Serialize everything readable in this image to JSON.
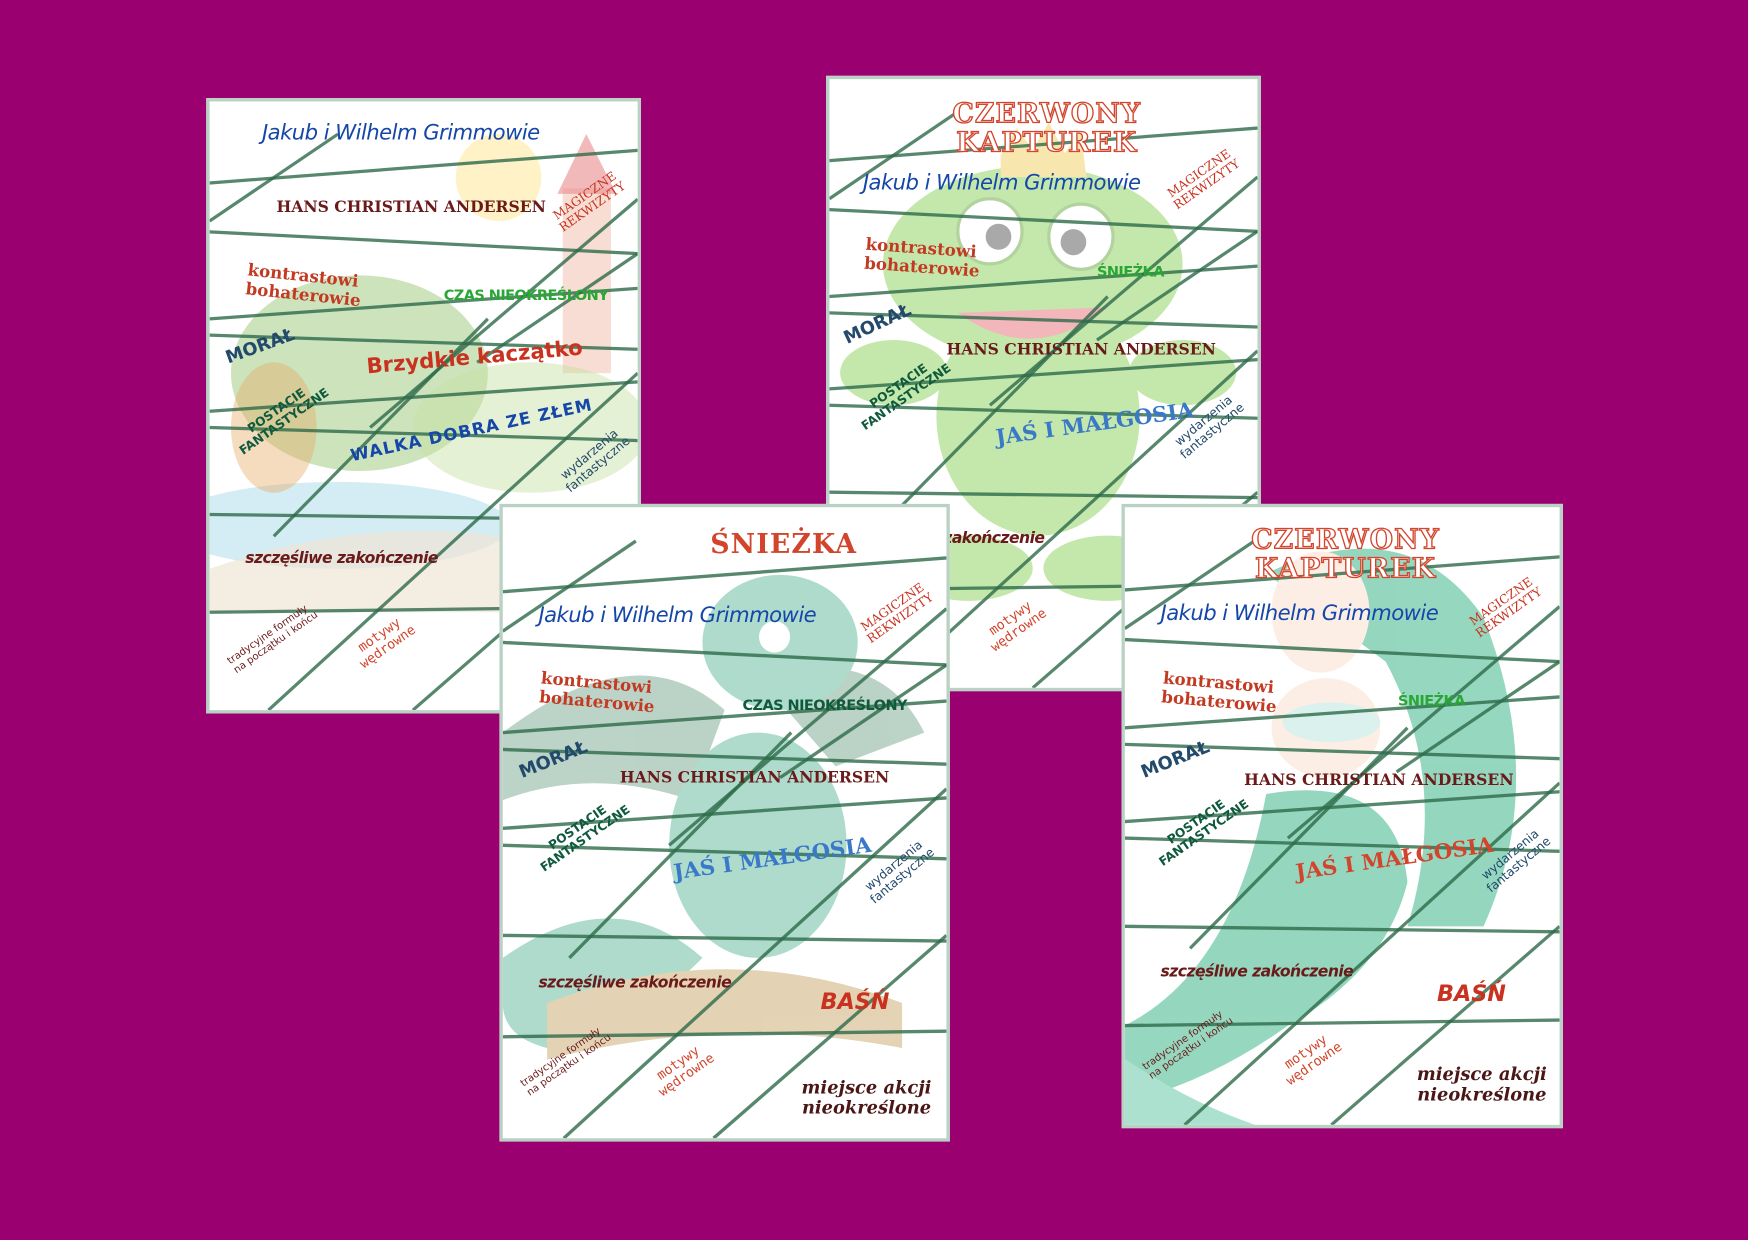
{
  "background": "#9b0070",
  "cards": [
    {
      "name": "worksheet-brzydkie-kaczatko",
      "illustration": "castle-landscape",
      "labels": {
        "authors": "Jakub i Wilhelm Grimmowie",
        "andersen": "HANS CHRISTIAN ANDERSEN",
        "magiczne": "MAGICZNE\nREKWIZYTY",
        "kontrast": "kontrastowi\nbohaterowie",
        "czas": "CZAS NIEOKREŚLONY",
        "moral": "MORAŁ",
        "big": "Brzydkie kaczątko",
        "postacie": "POSTACIE\nFANTASTYCZNE",
        "walka": "WALKA DOBRA ZE ZŁEM",
        "wydarzenia": "wydarzenia\nfantastyczne",
        "happy": "szczęśliwe zakończenie",
        "trad": "tradycyjne formuły\nna początku i końcu",
        "motywy": "motywy\nwędrowne"
      }
    },
    {
      "name": "worksheet-czerwony-kapturek-frog",
      "illustration": "frog-prince",
      "labels": {
        "title": "CZERWONY KAPTUREK",
        "authors": "Jakub i Wilhelm Grimmowie",
        "magiczne": "MAGICZNE\nREKWIZYTY",
        "kontrast": "kontrastowi\nbohaterowie",
        "sniezka": "ŚNIEŻKA",
        "moral": "MORAŁ",
        "andersen": "HANS CHRISTIAN ANDERSEN",
        "postacie": "POSTACIE\nFANTASTYCZNE",
        "jas": "JAŚ I MAŁGOSIA",
        "wydarzenia": "wydarzenia\nfantastyczne",
        "happy": "szczęśliwe zakończenie",
        "motywy": "motywy\nwędrowne"
      }
    },
    {
      "name": "worksheet-sniezka-dragon",
      "illustration": "dragon",
      "labels": {
        "title": "ŚNIEŻKA",
        "authors": "Jakub i Wilhelm Grimmowie",
        "magiczne": "MAGICZNE\nREKWIZYTY",
        "kontrast": "kontrastowi\nbohaterowie",
        "czas": "CZAS NIEOKREŚLONY",
        "moral": "MORAŁ",
        "andersen": "HANS CHRISTIAN ANDERSEN",
        "postacie": "POSTACIE\nFANTASTYCZNE",
        "jas": "JAŚ I MAŁGOSIA",
        "wydarzenia": "wydarzenia\nfantastyczne",
        "happy": "szczęśliwe zakończenie",
        "basn": "BAŚŃ",
        "trad": "tradycyjne formuły\nna początku i końcu",
        "motywy": "motywy\nwędrowne",
        "miejsce": "miejsce akcji\nnieokreślone"
      }
    },
    {
      "name": "worksheet-czerwony-kapturek-mermaid",
      "illustration": "mermaid",
      "labels": {
        "title": "CZERWONY KAPTUREK",
        "authors": "Jakub i Wilhelm Grimmowie",
        "magiczne": "MAGICZNE\nREKWIZYTY",
        "kontrast": "kontrastowi\nbohaterowie",
        "sniezka": "ŚNIEŻKA",
        "moral": "MORAŁ",
        "andersen": "HANS CHRISTIAN ANDERSEN",
        "postacie": "POSTACIE\nFANTASTYCZNE",
        "jas": "JAŚ I MAŁGOSIA",
        "wydarzenia": "wydarzenia\nfantastyczne",
        "happy": "szczęśliwe zakończenie",
        "basn": "BAŚŃ",
        "trad": "tradycyjne formuły\nna początku i końcu",
        "motywy": "motywy\nwędrowne",
        "miejsce": "miejsce akcji\nnieokreślone"
      }
    }
  ]
}
